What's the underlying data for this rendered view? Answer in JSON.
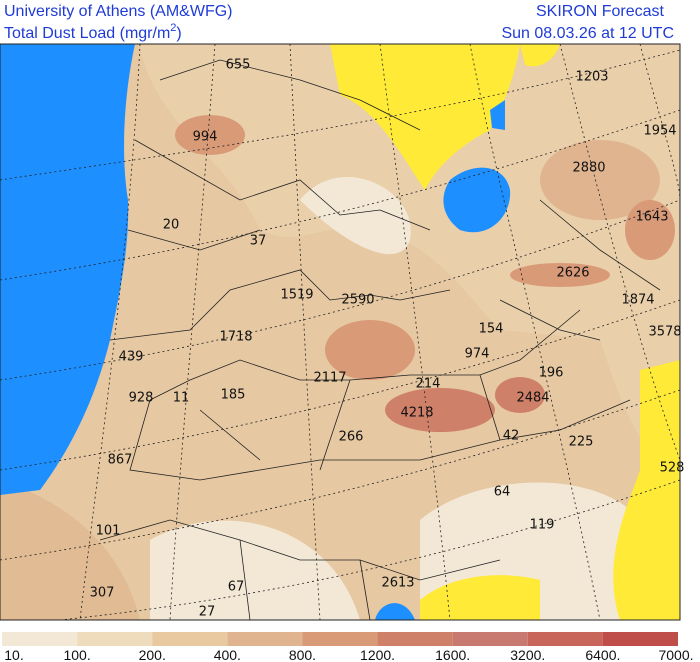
{
  "header": {
    "institution": "University of Athens (AM&WFG)",
    "title": {
      "text": "Total Dust Load (mgr/m",
      "superscript": "2",
      "close": ")"
    },
    "product": "SKIRON Forecast",
    "date": "Sun 08.03.26 at 12 UTC"
  },
  "map": {
    "labels": [
      655,
      1203,
      994,
      1954,
      2880,
      20,
      37,
      1643,
      2626,
      1874,
      1519,
      2590,
      1718,
      154,
      3578,
      439,
      974,
      196,
      2117,
      214,
      928,
      11,
      185,
      2484,
      4218,
      266,
      42,
      225,
      867,
      528,
      64,
      119,
      101,
      307,
      67,
      2613,
      27
    ]
  },
  "legend": {
    "labels": [
      "10.",
      "100.",
      "200.",
      "400.",
      "800.",
      "1200.",
      "1600.",
      "3200.",
      "6400.",
      "7000."
    ],
    "colors": [
      "#f3e8d6",
      "#eedcbd",
      "#e8c9a0",
      "#dfb48f",
      "#d99a78",
      "#cf8068",
      "#c97a70",
      "#c9665c",
      "#bf4e4a"
    ]
  }
}
